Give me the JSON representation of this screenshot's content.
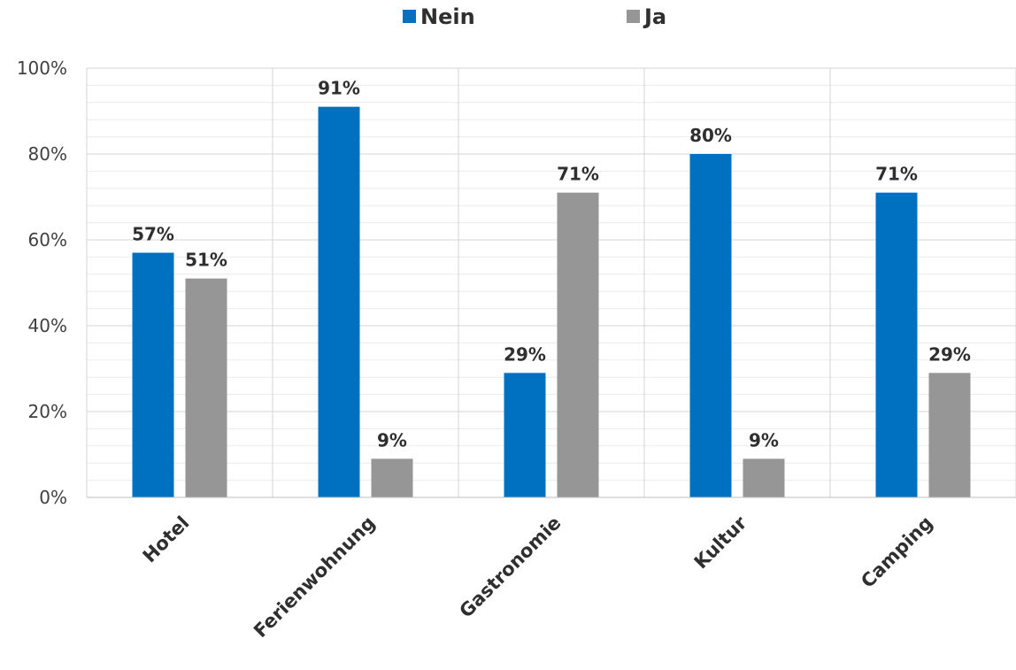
{
  "chart_data": {
    "type": "bar",
    "categories": [
      "Hotel",
      "Ferienwohnung",
      "Gastronomie",
      "Kultur",
      "Camping"
    ],
    "series": [
      {
        "name": "Nein",
        "color": "#0070C0",
        "values": [
          57,
          91,
          29,
          80,
          71
        ],
        "labels": [
          "57%",
          "91%",
          "29%",
          "80%",
          "71%"
        ]
      },
      {
        "name": "Ja",
        "color": "#969696",
        "values": [
          51,
          9,
          71,
          9,
          29
        ],
        "labels": [
          "51%",
          "9%",
          "71%",
          "9%",
          "29%"
        ]
      }
    ],
    "ylim": [
      0,
      100
    ],
    "yticks": [
      0,
      20,
      40,
      60,
      80,
      100
    ],
    "ytick_labels": [
      "0%",
      "20%",
      "40%",
      "60%",
      "80%",
      "100%"
    ],
    "grid": true,
    "legend_position": "top-center",
    "title": "",
    "xlabel": "",
    "ylabel": ""
  }
}
